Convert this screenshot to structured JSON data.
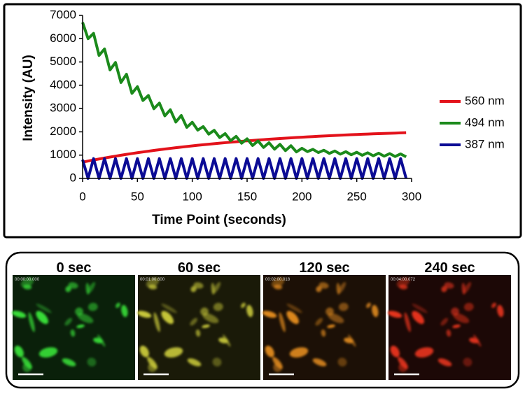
{
  "chart_data": {
    "type": "line",
    "ylabel": "Intensity (AU)",
    "xlabel": "Time Point (seconds)",
    "xlim": [
      0,
      300
    ],
    "xticks": [
      0,
      50,
      100,
      150,
      200,
      250,
      300
    ],
    "ylim": [
      0,
      7000
    ],
    "yticks": [
      0,
      1000,
      2000,
      3000,
      4000,
      5000,
      6000,
      7000
    ],
    "grid": false,
    "legend": "right",
    "x": [
      0,
      5,
      10,
      15,
      20,
      25,
      30,
      35,
      40,
      45,
      50,
      55,
      60,
      65,
      70,
      75,
      80,
      85,
      90,
      95,
      100,
      105,
      110,
      115,
      120,
      125,
      130,
      135,
      140,
      145,
      150,
      155,
      160,
      165,
      170,
      175,
      180,
      185,
      190,
      195,
      200,
      205,
      210,
      215,
      220,
      225,
      230,
      235,
      240,
      245,
      250,
      255,
      260,
      265,
      270,
      275,
      280,
      285,
      290,
      295
    ],
    "series": [
      {
        "name": "560 nm",
        "color": "#e3121b",
        "values": [
          700,
          746,
          791,
          834,
          876,
          917,
          956,
          995,
          1032,
          1068,
          1103,
          1136,
          1169,
          1201,
          1232,
          1261,
          1290,
          1318,
          1345,
          1372,
          1397,
          1422,
          1446,
          1469,
          1491,
          1513,
          1534,
          1555,
          1575,
          1594,
          1613,
          1631,
          1648,
          1665,
          1682,
          1698,
          1713,
          1728,
          1743,
          1757,
          1770,
          1783,
          1796,
          1809,
          1821,
          1832,
          1844,
          1855,
          1865,
          1876,
          1886,
          1895,
          1905,
          1914,
          1923,
          1931,
          1939,
          1947,
          1955,
          1963
        ]
      },
      {
        "name": "494 nm",
        "color": "#1b8a1b",
        "values": [
          6700,
          6000,
          6228,
          5281,
          5559,
          4658,
          4978,
          4118,
          4475,
          3650,
          3939,
          3344,
          3561,
          2992,
          3234,
          2687,
          2950,
          2422,
          2703,
          2193,
          2410,
          2074,
          2225,
          1902,
          2065,
          1753,
          1925,
          1623,
          1805,
          1511,
          1700,
          1414,
          1610,
          1329,
          1531,
          1256,
          1463,
          1193,
          1404,
          1138,
          1293,
          1150,
          1249,
          1109,
          1210,
          1073,
          1177,
          1042,
          1148,
          1015,
          1123,
          992,
          1101,
          972,
          1083,
          954,
          1066,
          939,
          1052,
          926
        ]
      },
      {
        "name": "387 nm",
        "color": "#0b0b95",
        "values": [
          800,
          0,
          850,
          0,
          850,
          0,
          850,
          0,
          850,
          0,
          850,
          0,
          850,
          0,
          850,
          0,
          850,
          0,
          850,
          0,
          850,
          0,
          850,
          0,
          850,
          0,
          850,
          0,
          850,
          0,
          850,
          0,
          850,
          0,
          850,
          0,
          850,
          0,
          850,
          0,
          850,
          0,
          850,
          0,
          850,
          0,
          850,
          0,
          850,
          0,
          850,
          0,
          850,
          0,
          850,
          0,
          850,
          0,
          850,
          0
        ]
      }
    ]
  },
  "panels": [
    {
      "label": "0 sec",
      "timestamp": "00:00:00.000"
    },
    {
      "label": "60 sec",
      "timestamp": "00:01:00.600"
    },
    {
      "label": "120 sec",
      "timestamp": "00:02:00.018"
    },
    {
      "label": "240 sec",
      "timestamp": "00:04:00.072"
    }
  ]
}
